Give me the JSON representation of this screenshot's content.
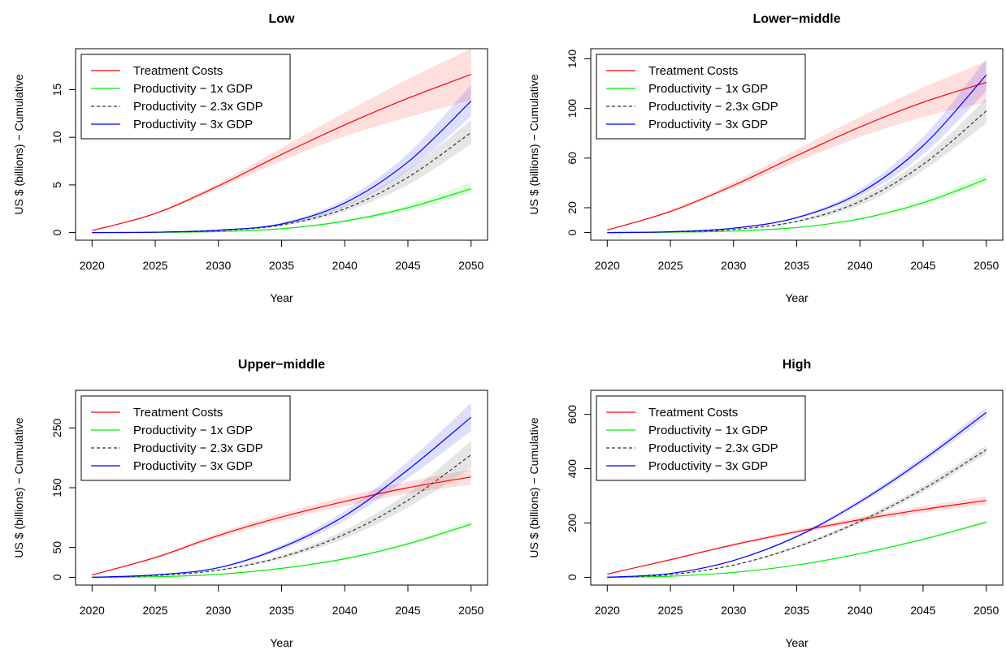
{
  "chart_data": [
    {
      "type": "line",
      "title": "Low",
      "xlabel": "Year",
      "ylabel": "US $ (billions) − Cumulative",
      "xlim": [
        2020,
        2050
      ],
      "ylim": [
        0,
        18.5
      ],
      "xticks": [
        2020,
        2025,
        2030,
        2035,
        2040,
        2045,
        2050
      ],
      "yticks": [
        0,
        5,
        10,
        15
      ],
      "legend_position": "top-left",
      "grid": false,
      "x": [
        2020,
        2025,
        2030,
        2035,
        2040,
        2045,
        2050
      ],
      "series": [
        {
          "name": "Treatment Costs",
          "color": "#ff0000",
          "dash": "solid",
          "values": [
            0.2,
            2.0,
            4.9,
            8.2,
            11.3,
            14.1,
            16.6
          ],
          "lower": [
            0.2,
            1.9,
            4.6,
            7.5,
            10.1,
            12.1,
            13.9
          ],
          "upper": [
            0.2,
            2.1,
            5.2,
            8.9,
            12.6,
            16.1,
            19.3
          ]
        },
        {
          "name": "Productivity − 1x GDP",
          "color": "#00ee00",
          "dash": "solid",
          "values": [
            0,
            0.02,
            0.1,
            0.4,
            1.2,
            2.6,
            4.6
          ],
          "lower": [
            0,
            0.02,
            0.09,
            0.35,
            1.1,
            2.3,
            4.1
          ],
          "upper": [
            0,
            0.02,
            0.11,
            0.45,
            1.3,
            2.9,
            5.3
          ]
        },
        {
          "name": "Productivity − 2.3x GDP",
          "color": "#333333",
          "dash": "dashed",
          "values": [
            0,
            0.03,
            0.2,
            0.8,
            2.5,
            5.8,
            10.5
          ],
          "lower": [
            0,
            0.03,
            0.18,
            0.7,
            2.2,
            5.0,
            9.3
          ],
          "upper": [
            0,
            0.03,
            0.22,
            0.9,
            2.8,
            6.6,
            11.8
          ]
        },
        {
          "name": "Productivity − 3x GDP",
          "color": "#0000ff",
          "dash": "solid",
          "values": [
            0,
            0.04,
            0.25,
            0.9,
            3.1,
            7.4,
            13.8
          ],
          "lower": [
            0,
            0.04,
            0.22,
            0.8,
            2.7,
            6.5,
            12.2
          ],
          "upper": [
            0,
            0.04,
            0.28,
            1.0,
            3.5,
            8.3,
            15.5
          ]
        }
      ]
    },
    {
      "type": "line",
      "title": "Lower−middle",
      "xlabel": "Year",
      "ylabel": "US $ (billions) − Cumulative",
      "xlim": [
        2020,
        2050
      ],
      "ylim": [
        0,
        142
      ],
      "xticks": [
        2020,
        2025,
        2030,
        2035,
        2040,
        2045,
        2050
      ],
      "yticks": [
        0,
        20,
        60,
        100,
        140
      ],
      "legend_position": "top-left",
      "grid": false,
      "x": [
        2020,
        2025,
        2030,
        2035,
        2040,
        2045,
        2050
      ],
      "series": [
        {
          "name": "Treatment Costs",
          "color": "#ff0000",
          "dash": "solid",
          "values": [
            2,
            17,
            38,
            62,
            85,
            105,
            121
          ],
          "lower": [
            2,
            16,
            36,
            57,
            77,
            93,
            105
          ],
          "upper": [
            2,
            18,
            41,
            67,
            93,
            117,
            138
          ]
        },
        {
          "name": "Productivity − 1x GDP",
          "color": "#00ee00",
          "dash": "solid",
          "values": [
            0,
            0.3,
            1.2,
            4,
            11,
            24,
            43
          ],
          "lower": [
            0,
            0.3,
            1.1,
            3.6,
            10,
            22,
            40
          ],
          "upper": [
            0,
            0.3,
            1.3,
            4.4,
            12,
            26,
            47
          ]
        },
        {
          "name": "Productivity − 2.3x GDP",
          "color": "#333333",
          "dash": "dashed",
          "values": [
            0,
            0.5,
            2.5,
            9,
            25,
            55,
            98
          ],
          "lower": [
            0,
            0.5,
            2.3,
            8,
            22,
            50,
            88
          ],
          "upper": [
            0,
            0.5,
            2.7,
            10,
            28,
            60,
            108
          ]
        },
        {
          "name": "Productivity − 3x GDP",
          "color": "#0000ff",
          "dash": "solid",
          "values": [
            0,
            0.6,
            3.5,
            12,
            32,
            70,
            127
          ],
          "lower": [
            0,
            0.6,
            3.2,
            11,
            29,
            63,
            114
          ],
          "upper": [
            0,
            0.6,
            3.8,
            13,
            35,
            77,
            140
          ]
        }
      ]
    },
    {
      "type": "line",
      "title": "Upper−middle",
      "xlabel": "Year",
      "ylabel": "US $ (billions) − Cumulative",
      "xlim": [
        2020,
        2050
      ],
      "ylim": [
        0,
        300
      ],
      "xticks": [
        2020,
        2025,
        2030,
        2035,
        2040,
        2045,
        2050
      ],
      "yticks": [
        0,
        50,
        150,
        250
      ],
      "legend_position": "top-left",
      "grid": false,
      "x": [
        2020,
        2025,
        2030,
        2035,
        2040,
        2045,
        2050
      ],
      "series": [
        {
          "name": "Treatment Costs",
          "color": "#ff0000",
          "dash": "solid",
          "values": [
            4,
            33,
            70,
            101,
            127,
            150,
            168
          ],
          "lower": [
            4,
            31,
            66,
            95,
            119,
            140,
            155
          ],
          "upper": [
            4,
            35,
            74,
            107,
            135,
            160,
            181
          ]
        },
        {
          "name": "Productivity − 1x GDP",
          "color": "#00ee00",
          "dash": "solid",
          "values": [
            0,
            1,
            5,
            15,
            31,
            56,
            89
          ],
          "lower": [
            0,
            1,
            5,
            14,
            29,
            53,
            85
          ],
          "upper": [
            0,
            1,
            5,
            16,
            33,
            59,
            94
          ]
        },
        {
          "name": "Productivity − 2.3x GDP",
          "color": "#333333",
          "dash": "dashed",
          "values": [
            0,
            3,
            12,
            34,
            72,
            129,
            205
          ],
          "lower": [
            0,
            3,
            11,
            31,
            65,
            117,
            183
          ],
          "upper": [
            0,
            3,
            13,
            37,
            79,
            141,
            228
          ]
        },
        {
          "name": "Productivity − 3x GDP",
          "color": "#0000ff",
          "dash": "solid",
          "values": [
            0,
            4,
            16,
            50,
            103,
            180,
            268
          ],
          "lower": [
            0,
            4,
            15,
            46,
            95,
            166,
            245
          ],
          "upper": [
            0,
            4,
            17,
            54,
            111,
            194,
            292
          ]
        }
      ]
    },
    {
      "type": "line",
      "title": "High",
      "xlabel": "Year",
      "ylabel": "US $ (billions) − Cumulative",
      "xlim": [
        2020,
        2050
      ],
      "ylim": [
        0,
        660
      ],
      "xticks": [
        2020,
        2025,
        2030,
        2035,
        2040,
        2045,
        2050
      ],
      "yticks": [
        0,
        200,
        400,
        600
      ],
      "legend_position": "top-left",
      "grid": false,
      "x": [
        2020,
        2025,
        2030,
        2035,
        2040,
        2045,
        2050
      ],
      "series": [
        {
          "name": "Treatment Costs",
          "color": "#ff0000",
          "dash": "solid",
          "values": [
            12,
            65,
            120,
            168,
            212,
            250,
            283
          ],
          "lower": [
            12,
            62,
            115,
            160,
            202,
            238,
            268
          ],
          "upper": [
            12,
            68,
            125,
            176,
            222,
            262,
            298
          ]
        },
        {
          "name": "Productivity − 1x GDP",
          "color": "#00ee00",
          "dash": "solid",
          "values": [
            0,
            4,
            18,
            45,
            87,
            140,
            203
          ],
          "lower": [
            0,
            4,
            17,
            43,
            84,
            136,
            198
          ],
          "upper": [
            0,
            4,
            19,
            47,
            90,
            144,
            208
          ]
        },
        {
          "name": "Productivity − 2.3x GDP",
          "color": "#333333",
          "dash": "dashed",
          "values": [
            0,
            10,
            45,
            112,
            206,
            325,
            470
          ],
          "lower": [
            0,
            10,
            43,
            107,
            198,
            313,
            455
          ],
          "upper": [
            0,
            10,
            47,
            117,
            214,
            337,
            485
          ]
        },
        {
          "name": "Productivity − 3x GDP",
          "color": "#0000ff",
          "dash": "solid",
          "values": [
            0,
            14,
            62,
            150,
            278,
            433,
            607
          ],
          "lower": [
            0,
            14,
            60,
            145,
            269,
            421,
            590
          ],
          "upper": [
            0,
            14,
            64,
            155,
            287,
            445,
            624
          ]
        }
      ]
    }
  ]
}
